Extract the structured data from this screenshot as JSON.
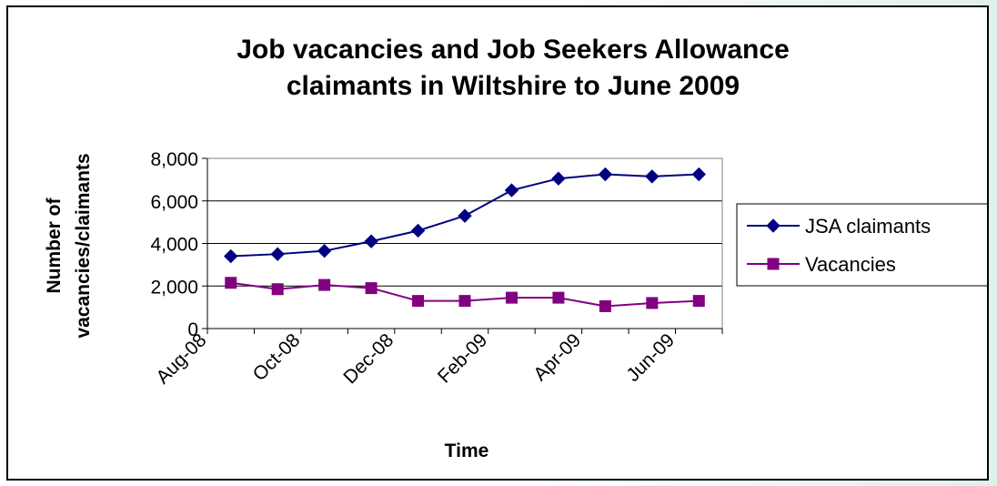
{
  "chart_data": {
    "type": "line",
    "title_lines": [
      "Job vacancies and Job Seekers Allowance",
      "claimants in Wiltshire to June 2009"
    ],
    "xlabel": "Time",
    "ylabel_lines": [
      "Number of",
      "vacancies/claimants"
    ],
    "ylim": [
      0,
      8000
    ],
    "y_ticks": [
      "0",
      "2,000",
      "4,000",
      "6,000",
      "8,000"
    ],
    "x_tick_labels": [
      "Aug-08",
      "Oct-08",
      "Dec-08",
      "Feb-09",
      "Apr-09",
      "Jun-09"
    ],
    "categories": [
      "Aug-08",
      "Sep-08",
      "Oct-08",
      "Nov-08",
      "Dec-08",
      "Jan-09",
      "Feb-09",
      "Mar-09",
      "Apr-09",
      "May-09",
      "Jun-09"
    ],
    "series": [
      {
        "name": "JSA claimants",
        "marker": "diamond",
        "color": "#000080",
        "values": [
          3400,
          3500,
          3650,
          4100,
          4600,
          5300,
          6500,
          7050,
          7250,
          7150,
          7250
        ]
      },
      {
        "name": "Vacancies",
        "marker": "square",
        "color": "#800080",
        "values": [
          2150,
          1850,
          2050,
          1900,
          1300,
          1300,
          1450,
          1450,
          1050,
          1200,
          1300
        ]
      }
    ],
    "grid": true,
    "legend_position": "right"
  }
}
